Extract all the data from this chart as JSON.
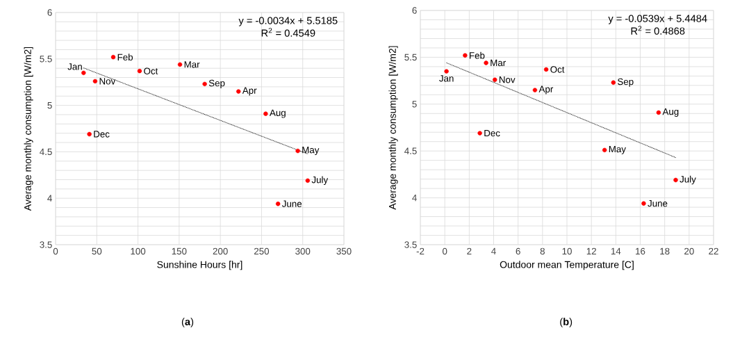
{
  "chart_data": [
    {
      "type": "scatter",
      "xlabel": "Sunshine Hours [hr]",
      "ylabel": "Average monthly consumption [W/m2]",
      "annotations": [
        "y = -0.0034x + 5.5185",
        "R$^{2}$ = 0.4549",
        "(**a**)"
      ],
      "xlim": [
        0,
        350
      ],
      "xticks": [
        0,
        50,
        100,
        150,
        200,
        250,
        300,
        350
      ],
      "ylim": [
        3.5,
        6
      ],
      "yticks": [
        3.5,
        {
          "value": 3.6,
          "label": null
        },
        {
          "value": 3.7,
          "label": null
        },
        {
          "value": 3.8,
          "label": null
        },
        {
          "value": 3.9,
          "label": null
        },
        4,
        {
          "value": 4.1,
          "label": null
        },
        {
          "value": 4.2,
          "label": null
        },
        {
          "value": 4.3,
          "label": null
        },
        {
          "value": 4.4,
          "label": null
        },
        4.5,
        {
          "value": 4.6,
          "label": null
        },
        {
          "value": 4.7,
          "label": null
        },
        {
          "value": 4.8,
          "label": null
        },
        {
          "value": 4.9,
          "label": null
        },
        5,
        {
          "value": 5.1,
          "label": null
        },
        {
          "value": 5.2,
          "label": null
        },
        {
          "value": 5.3,
          "label": null
        },
        {
          "value": 5.4,
          "label": null
        },
        5.5,
        {
          "value": 5.6,
          "label": null
        },
        {
          "value": 5.7,
          "label": null
        },
        {
          "value": 5.8,
          "label": null
        },
        {
          "value": 5.9,
          "label": null
        },
        6
      ],
      "grid": true,
      "series": [
        {
          "type": "scatter",
          "marker": "circle",
          "color": "#ff0000",
          "x": [
            34,
            48,
            70,
            102,
            151,
            181,
            222,
            255,
            41,
            294,
            306,
            270
          ],
          "values": [
            5.35,
            5.26,
            5.52,
            5.37,
            5.44,
            5.23,
            5.15,
            4.91,
            4.69,
            4.51,
            4.19,
            3.94
          ],
          "value_labels": [
            "Jan",
            "Nov",
            "Feb",
            "Oct",
            "Mar",
            "Sep",
            "Apr",
            "Aug",
            "Dec",
            "May",
            "July",
            "June"
          ]
        },
        {
          "type": "line",
          "color": "#000000",
          "line_style": "dotted",
          "x": [
            34,
            306
          ],
          "values": [
            5.403,
            4.478
          ]
        }
      ]
    },
    {
      "type": "scatter",
      "xlabel": "Outdoor mean Temperature [C]",
      "ylabel": "Average monthly consumption [W/m2]",
      "annotations": [
        "y = -0.0539x + 5.4484",
        "R$^{2}$ = 0.4868",
        "(**b**)"
      ],
      "xlim": [
        -2,
        22
      ],
      "xticks": [
        -2,
        0,
        2,
        4,
        6,
        8,
        10,
        12,
        14,
        16,
        18,
        20,
        22
      ],
      "ylim": [
        3.5,
        6
      ],
      "yticks": [
        3.5,
        {
          "value": 3.6,
          "label": null
        },
        {
          "value": 3.7,
          "label": null
        },
        {
          "value": 3.8,
          "label": null
        },
        {
          "value": 3.9,
          "label": null
        },
        4,
        {
          "value": 4.1,
          "label": null
        },
        {
          "value": 4.2,
          "label": null
        },
        {
          "value": 4.3,
          "label": null
        },
        {
          "value": 4.4,
          "label": null
        },
        4.5,
        {
          "value": 4.6,
          "label": null
        },
        {
          "value": 4.7,
          "label": null
        },
        {
          "value": 4.8,
          "label": null
        },
        {
          "value": 4.9,
          "label": null
        },
        5,
        {
          "value": 5.1,
          "label": null
        },
        {
          "value": 5.2,
          "label": null
        },
        {
          "value": 5.3,
          "label": null
        },
        {
          "value": 5.4,
          "label": null
        },
        5.5,
        {
          "value": 5.6,
          "label": null
        },
        {
          "value": 5.7,
          "label": null
        },
        {
          "value": 5.8,
          "label": null
        },
        {
          "value": 5.9,
          "label": null
        },
        6
      ],
      "grid": true,
      "series": [
        {
          "type": "scatter",
          "marker": "circle",
          "color": "#ff0000",
          "x": [
            0.14,
            4.1,
            1.66,
            8.3,
            3.38,
            13.8,
            7.38,
            17.5,
            2.87,
            13.08,
            18.9,
            16.28
          ],
          "values": [
            5.35,
            5.26,
            5.52,
            5.37,
            5.44,
            5.23,
            5.15,
            4.91,
            4.69,
            4.51,
            4.19,
            3.94
          ],
          "value_labels": [
            "Jan",
            "Nov",
            "Feb",
            "Oct",
            "Mar",
            "Sep",
            "Apr",
            "Aug",
            "Dec",
            "May",
            "July",
            "June"
          ]
        },
        {
          "type": "line",
          "color": "#000000",
          "line_style": "dotted",
          "x": [
            0.14,
            18.9
          ],
          "values": [
            5.441,
            4.43
          ]
        }
      ]
    }
  ]
}
